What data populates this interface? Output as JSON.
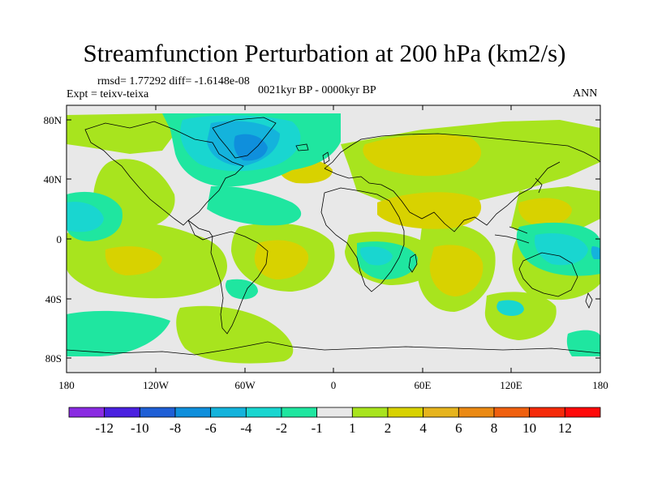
{
  "title": "Streamfunction Perturbation at 200 hPa (km2/s)",
  "stats": "rmsd= 1.77292 diff= -1.6148e-08",
  "experiment": "Expt = teixv-teixa",
  "period": "0021kyr BP - 0000kyr BP",
  "season": "ANN",
  "lat_ticks": [
    "80N",
    "40N",
    "0",
    "40S",
    "80S"
  ],
  "lon_ticks": [
    "180",
    "120W",
    "60W",
    "0",
    "60E",
    "120E",
    "180"
  ],
  "colorbar": {
    "labels": [
      "-12",
      "-10",
      "-8",
      "-6",
      "-4",
      "-2",
      "-1",
      "1",
      "2",
      "4",
      "6",
      "8",
      "10",
      "12"
    ],
    "colors": [
      "#8a2be2",
      "#4a20e0",
      "#1f5fd6",
      "#0f8fdc",
      "#14b3dc",
      "#19d6d0",
      "#1fe6a0",
      "#e8e8e8",
      "#a8e41e",
      "#d8d200",
      "#e6b41e",
      "#eb8a14",
      "#f0600f",
      "#f52a0a",
      "#ff0a0a"
    ]
  },
  "colors": {
    "background_field": "#e8e8e8",
    "coastline": "#000000"
  }
}
